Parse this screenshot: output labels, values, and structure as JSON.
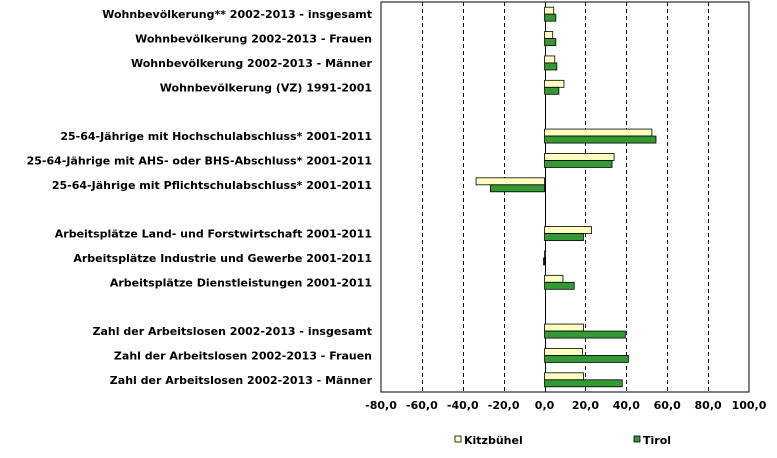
{
  "chart_data": {
    "type": "bar",
    "orientation": "horizontal",
    "categories": [
      "Wohnbevölkerung** 2002-2013 - insgesamt",
      "Wohnbevölkerung 2002-2013 - Frauen",
      "Wohnbevölkerung 2002-2013 - Männer",
      "Wohnbevölkerung (VZ) 1991-2001",
      "",
      "25-64-Jährige mit Hochschulabschluss* 2001-2011",
      "25-64-Jährige mit AHS- oder BHS-Abschluss* 2001-2011",
      "25-64-Jährige mit Pflichtschulabschluss* 2001-2011",
      "",
      "Arbeitsplätze Land- und Forstwirtschaft 2001-2011",
      "Arbeitsplätze Industrie und Gewerbe 2001-2011",
      "Arbeitsplätze Dienstleistungen 2001-2011",
      "",
      "Zahl der Arbeitslosen 2002-2013 - insgesamt",
      "Zahl der Arbeitslosen 2002-2013 - Frauen",
      "Zahl der Arbeitslosen 2002-2013 - Männer"
    ],
    "series": [
      {
        "name": "Kitzbühel",
        "color": "#ffffc0",
        "values": [
          4.5,
          4,
          5,
          9.5,
          null,
          52.5,
          34,
          -33.5,
          null,
          23,
          0,
          9,
          null,
          19,
          18.5,
          19
        ]
      },
      {
        "name": "Tirol",
        "color": "#339933",
        "values": [
          5.5,
          5.5,
          6,
          7,
          null,
          54.5,
          33,
          -26.5,
          null,
          19,
          -0.5,
          14.5,
          null,
          39.5,
          41,
          38
        ]
      }
    ],
    "xlim": [
      -80,
      100
    ],
    "xticks": [
      "-80,0",
      "-60,0",
      "-40,0",
      "-20,0",
      "0,0",
      "20,0",
      "40,0",
      "60,0",
      "80,0",
      "100,0"
    ],
    "grid": "vertical dashed",
    "legend_position": "bottom"
  }
}
